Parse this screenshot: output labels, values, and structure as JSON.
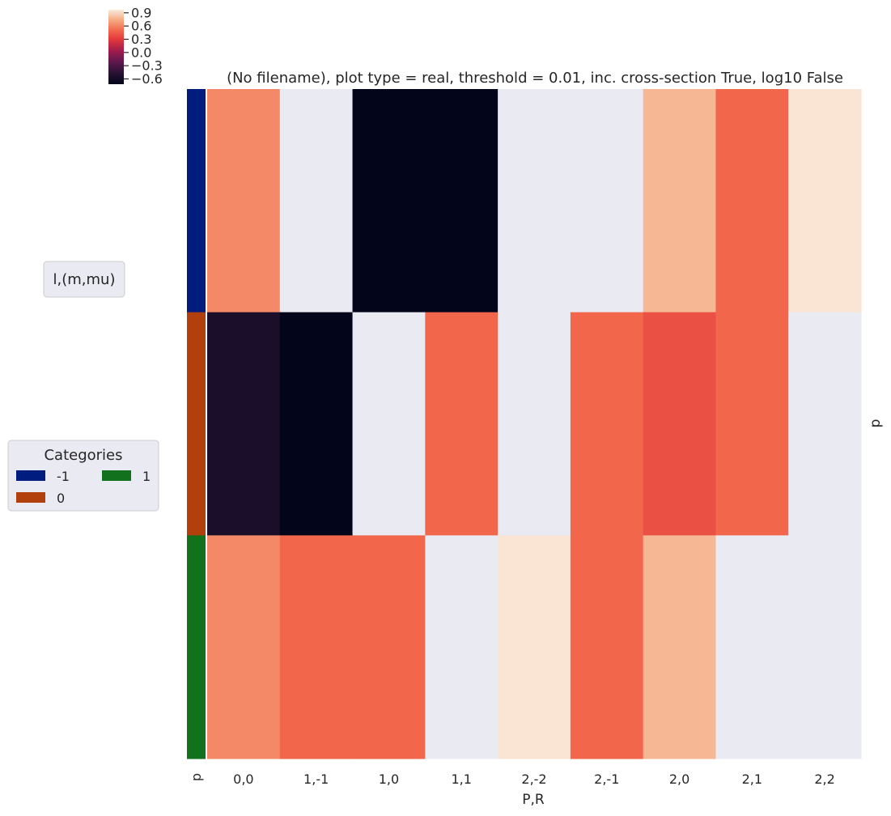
{
  "chart_data": {
    "type": "heatmap",
    "title": "(No filename), plot type = real, threshold = 0.01, inc. cross-section True, log10 False",
    "xlabel": "P,R",
    "ylabel_right": "p",
    "row_colors_label": "p",
    "x_categories": [
      "0,0",
      "1,-1",
      "1,0",
      "1,1",
      "2,-2",
      "2,-1",
      "2,0",
      "2,1",
      "2,2"
    ],
    "row_categories": [
      "-1",
      "0",
      "1"
    ],
    "values": [
      [
        0.62,
        null,
        -0.72,
        -0.72,
        null,
        null,
        0.78,
        0.5,
        0.95
      ],
      [
        -0.55,
        -0.72,
        null,
        0.5,
        null,
        0.5,
        0.4,
        0.5,
        null
      ],
      [
        0.62,
        0.5,
        0.5,
        null,
        0.95,
        0.5,
        0.78,
        null,
        null
      ]
    ],
    "missing_color": "#eaeaf2",
    "colorbar": {
      "colormap": "rocket",
      "vmin": -0.72,
      "vmax": 0.97,
      "ticks": [
        "0.9",
        "0.6",
        "0.3",
        "0.0",
        "−0.3",
        "−0.6"
      ],
      "tick_values": [
        0.9,
        0.6,
        0.3,
        0.0,
        -0.3,
        -0.6
      ]
    },
    "row_colors": [
      "#001c7f",
      "#b1400d",
      "#12711c"
    ],
    "legend": {
      "title": "Categories",
      "placement": "left",
      "entries": [
        {
          "label": "-1",
          "color": "#001c7f"
        },
        {
          "label": "0",
          "color": "#b1400d"
        },
        {
          "label": "1",
          "color": "#12711c"
        }
      ]
    },
    "side_label": "l,(m,mu)",
    "grid": false
  }
}
